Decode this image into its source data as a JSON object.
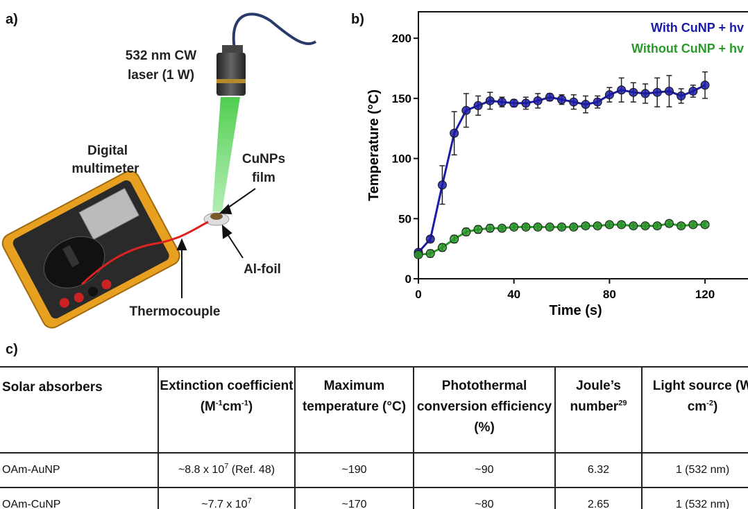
{
  "panel_labels": [
    "a)",
    "b)",
    "c)"
  ],
  "illustration": {
    "laser_label": [
      "532 nm CW",
      "laser (1 W)"
    ],
    "multimeter_label": [
      "Digital",
      "multimeter"
    ],
    "film_label": [
      "CuNPs",
      "film"
    ],
    "foil_label": "Al-foil",
    "thermocouple_label": "Thermocouple"
  },
  "chart_data": {
    "type": "line",
    "xlabel": "Time (s)",
    "ylabel": "Temperature (°C)",
    "x": [
      0,
      5,
      10,
      15,
      20,
      25,
      30,
      35,
      40,
      45,
      50,
      55,
      60,
      65,
      70,
      75,
      80,
      85,
      90,
      95,
      100,
      105,
      110,
      115,
      120
    ],
    "series": [
      {
        "name": "With CuNP + hv",
        "color": "#1c1ca8",
        "values": [
          22,
          33,
          78,
          121,
          140,
          144,
          148,
          147,
          146,
          146,
          148,
          151,
          149,
          147,
          145,
          147,
          153,
          157,
          155,
          154,
          155,
          156,
          152,
          156,
          161
        ],
        "errors": [
          0,
          2,
          16,
          18,
          14,
          8,
          7,
          4,
          3,
          5,
          6,
          3,
          4,
          6,
          7,
          5,
          6,
          10,
          8,
          8,
          12,
          13,
          6,
          5,
          11
        ]
      },
      {
        "name": "Without CuNP + hv",
        "color": "#2a9a2a",
        "values": [
          20,
          21,
          26,
          33,
          39,
          41,
          42,
          42,
          43,
          43,
          43,
          43,
          43,
          43,
          44,
          44,
          45,
          45,
          44,
          44,
          44,
          46,
          44,
          45,
          45
        ],
        "errors": [
          2,
          3,
          3,
          3,
          3,
          3,
          3,
          2,
          2,
          2,
          2,
          2,
          2,
          2,
          2,
          2,
          2,
          2,
          2,
          2,
          2,
          2,
          2,
          2,
          2
        ]
      }
    ],
    "xlim": [
      0,
      138
    ],
    "ylim": [
      0,
      222
    ],
    "xticks": [
      0,
      40,
      80,
      120
    ],
    "yticks": [
      0,
      50,
      100,
      150,
      200
    ],
    "legend": "upper right"
  },
  "table": {
    "header": [
      [
        "Solar absorbers"
      ],
      [
        "Extinction coefficient (M",
        {
          "sup": "-1"
        },
        "cm",
        {
          "sup": "-1"
        },
        ")"
      ],
      [
        "Maximum temperature (°C)"
      ],
      [
        "Photothermal conversion efficiency (%)"
      ],
      [
        "Joule’s number",
        {
          "sup": "29"
        }
      ],
      [
        "Light source (W cm",
        {
          "sup": "-2"
        },
        ")"
      ]
    ],
    "rows": [
      [
        [
          "OAm-AuNP"
        ],
        [
          "~8.8 x 10",
          {
            "sup": "7"
          },
          " (Ref. 48)"
        ],
        [
          "~190"
        ],
        [
          "~90"
        ],
        [
          "6.32"
        ],
        [
          "1 (532 nm)"
        ]
      ],
      [
        [
          "OAm-CuNP"
        ],
        [
          "~7.7 x 10",
          {
            "sup": "7"
          }
        ],
        [
          "~170"
        ],
        [
          "~80"
        ],
        [
          "2.65"
        ],
        [
          "1 (532 nm)"
        ]
      ]
    ]
  }
}
